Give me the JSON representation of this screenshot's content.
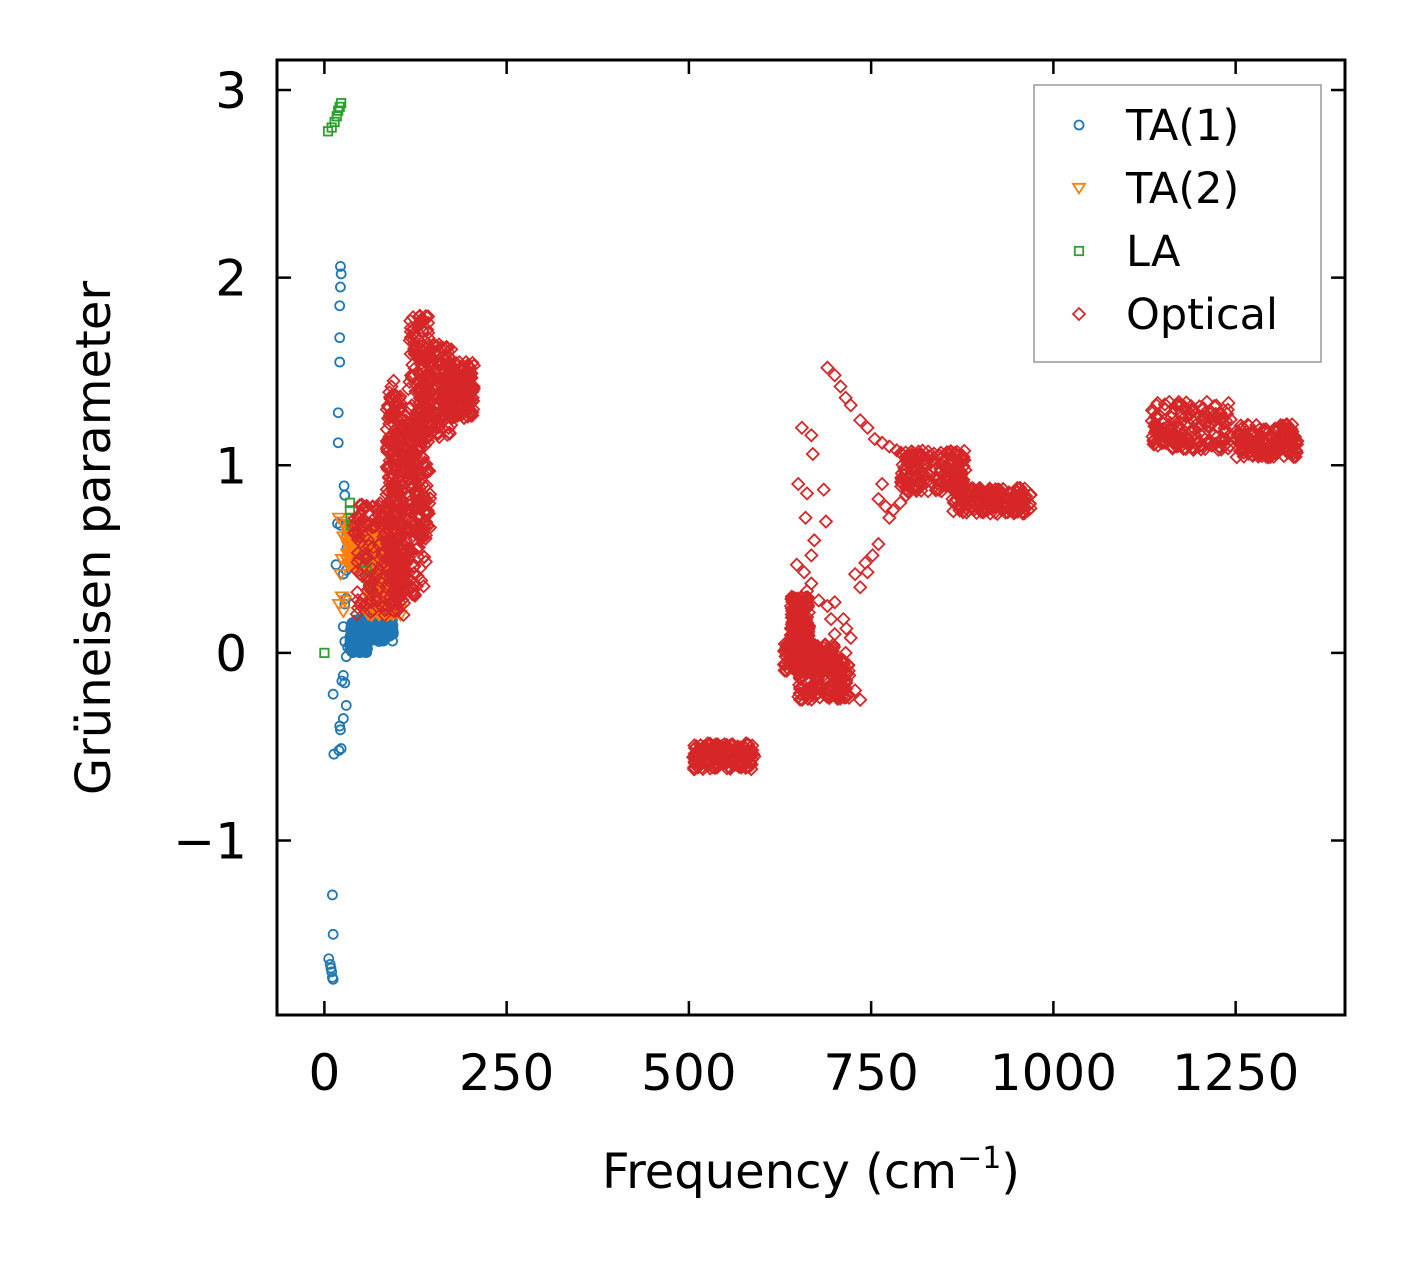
{
  "chart_data": {
    "type": "scatter",
    "title": "",
    "xlabel": "Frequency (cm",
    "xlabel_sup": "−1",
    "xlabel_suffix": ")",
    "ylabel": "Grüneisen parameter",
    "xlim": [
      -65,
      1400
    ],
    "ylim": [
      -1.93,
      3.16
    ],
    "xticks": [
      0,
      250,
      500,
      750,
      1000,
      1250
    ],
    "xtick_labels": [
      "0",
      "250",
      "500",
      "750",
      "1000",
      "1250"
    ],
    "yticks": [
      -1,
      0,
      1,
      2,
      3
    ],
    "ytick_labels": [
      "−1",
      "0",
      "1",
      "2",
      "3"
    ],
    "grid": false,
    "legend_position": "top-right",
    "series": [
      {
        "name": "TA(1)",
        "marker": "circle",
        "color": "#1f77b4",
        "points": [
          [
            22,
            2.06
          ],
          [
            23,
            2.02
          ],
          [
            22,
            1.95
          ],
          [
            21,
            1.85
          ],
          [
            21,
            1.68
          ],
          [
            21,
            1.55
          ],
          [
            19,
            1.28
          ],
          [
            19,
            1.12
          ],
          [
            27,
            0.89
          ],
          [
            28,
            0.84
          ],
          [
            18,
            0.69
          ],
          [
            22,
            0.68
          ],
          [
            30,
            0.62
          ],
          [
            31,
            0.56
          ],
          [
            16,
            0.47
          ],
          [
            30,
            0.44
          ],
          [
            26,
            0.42
          ],
          [
            30,
            0.29
          ],
          [
            28,
            0.26
          ],
          [
            26,
            0.14
          ],
          [
            28,
            0.06
          ],
          [
            32,
            0.03
          ],
          [
            30,
            -0.02
          ],
          [
            26,
            -0.12
          ],
          [
            24,
            -0.15
          ],
          [
            28,
            -0.16
          ],
          [
            12,
            -0.22
          ],
          [
            30,
            -0.28
          ],
          [
            26,
            -0.35
          ],
          [
            21,
            -0.39
          ],
          [
            22,
            -0.41
          ],
          [
            23,
            -0.51
          ],
          [
            20,
            -0.52
          ],
          [
            13,
            -0.54
          ],
          [
            11,
            -1.29
          ],
          [
            12,
            -1.5
          ],
          [
            6,
            -1.63
          ],
          [
            8,
            -1.66
          ],
          [
            9,
            -1.68
          ],
          [
            10,
            -1.7
          ],
          [
            11,
            -1.73
          ],
          [
            12,
            -1.74
          ]
        ],
        "bands": [
          {
            "x": [
              35,
              95
            ],
            "y": [
              0.06,
              0.16
            ]
          },
          {
            "x": [
              35,
              60
            ],
            "y": [
              0.0,
              0.18
            ]
          },
          {
            "x": [
              55,
              95
            ],
            "y": [
              0.1,
              0.22
            ]
          }
        ]
      },
      {
        "name": "TA(2)",
        "marker": "triangle-down",
        "color": "#ff7f0e",
        "points": [
          [
            20,
            0.72
          ],
          [
            24,
            0.7
          ],
          [
            26,
            0.62
          ],
          [
            24,
            0.5
          ],
          [
            22,
            0.42
          ],
          [
            24,
            0.3
          ],
          [
            20,
            0.26
          ],
          [
            28,
            0.28
          ],
          [
            26,
            0.22
          ]
        ],
        "bands": [
          {
            "x": [
              30,
              100
            ],
            "y": [
              0.45,
              0.7
            ]
          },
          {
            "x": [
              60,
              105
            ],
            "y": [
              0.2,
              0.52
            ]
          },
          {
            "x": [
              35,
              70
            ],
            "y": [
              0.5,
              0.68
            ]
          }
        ]
      },
      {
        "name": "LA",
        "marker": "square",
        "color": "#2ca02c",
        "points": [
          [
            5,
            2.78
          ],
          [
            10,
            2.8
          ],
          [
            14,
            2.83
          ],
          [
            17,
            2.86
          ],
          [
            19,
            2.89
          ],
          [
            21,
            2.91
          ],
          [
            23,
            2.93
          ],
          [
            0,
            0.0
          ],
          [
            35,
            0.8
          ],
          [
            35,
            0.76
          ],
          [
            36,
            0.72
          ],
          [
            37,
            0.68
          ],
          [
            54,
            0.52
          ],
          [
            56,
            0.48
          ],
          [
            58,
            0.44
          ],
          [
            57,
            0.4
          ],
          [
            60,
            0.36
          ],
          [
            100,
            0.52
          ],
          [
            104,
            0.5
          ],
          [
            108,
            0.48
          ],
          [
            112,
            0.54
          ],
          [
            96,
            0.46
          ],
          [
            102,
            0.42
          ]
        ],
        "bands": []
      },
      {
        "name": "Optical",
        "marker": "diamond",
        "color": "#d62728",
        "points": [
          [
            655,
            1.2
          ],
          [
            668,
            1.16
          ],
          [
            670,
            1.06
          ],
          [
            650,
            0.9
          ],
          [
            662,
            0.85
          ],
          [
            685,
            0.87
          ],
          [
            688,
            0.7
          ],
          [
            660,
            0.72
          ],
          [
            672,
            0.6
          ],
          [
            668,
            0.52
          ],
          [
            648,
            0.47
          ],
          [
            658,
            0.43
          ],
          [
            662,
            0.33
          ],
          [
            668,
            0.37
          ],
          [
            678,
            0.28
          ],
          [
            690,
            0.25
          ],
          [
            700,
            0.27
          ],
          [
            695,
            0.18
          ],
          [
            712,
            0.18
          ],
          [
            716,
            0.13
          ],
          [
            700,
            0.1
          ],
          [
            735,
            0.35
          ],
          [
            745,
            0.43
          ],
          [
            752,
            0.52
          ],
          [
            760,
            0.58
          ],
          [
            742,
            0.48
          ],
          [
            728,
            0.42
          ],
          [
            760,
            0.82
          ],
          [
            765,
            0.9
          ],
          [
            770,
            0.78
          ],
          [
            775,
            0.72
          ],
          [
            780,
            0.76
          ],
          [
            790,
            0.8
          ],
          [
            798,
            0.84
          ],
          [
            690,
            1.52
          ],
          [
            700,
            1.48
          ],
          [
            708,
            1.42
          ],
          [
            715,
            1.36
          ],
          [
            722,
            1.32
          ],
          [
            735,
            1.24
          ],
          [
            745,
            1.2
          ],
          [
            755,
            1.14
          ],
          [
            765,
            1.12
          ],
          [
            775,
            1.1
          ],
          [
            785,
            1.08
          ],
          [
            700,
            -0.05
          ],
          [
            710,
            -0.1
          ],
          [
            720,
            -0.12
          ],
          [
            728,
            -0.2
          ],
          [
            735,
            -0.25
          ],
          [
            715,
            0.0
          ],
          [
            722,
            0.08
          ],
          [
            95,
            1.45
          ],
          [
            92,
            1.42
          ]
        ],
        "bands": [
          {
            "x": [
              40,
              110
            ],
            "y": [
              0.2,
              0.8
            ]
          },
          {
            "x": [
              85,
              105
            ],
            "y": [
              0.3,
              1.4
            ]
          },
          {
            "x": [
              100,
              140
            ],
            "y": [
              0.3,
              1.25
            ]
          },
          {
            "x": [
              115,
              145
            ],
            "y": [
              0.6,
              1.8
            ]
          },
          {
            "x": [
              130,
              175
            ],
            "y": [
              1.15,
              1.65
            ]
          },
          {
            "x": [
              165,
              205
            ],
            "y": [
              1.25,
              1.55
            ]
          },
          {
            "x": [
              505,
              590
            ],
            "y": [
              -0.62,
              -0.48
            ]
          },
          {
            "x": [
              630,
              700
            ],
            "y": [
              -0.1,
              0.05
            ]
          },
          {
            "x": [
              650,
              720
            ],
            "y": [
              -0.25,
              -0.02
            ]
          },
          {
            "x": [
              640,
              665
            ],
            "y": [
              0.0,
              0.3
            ]
          },
          {
            "x": [
              790,
              880
            ],
            "y": [
              0.86,
              1.08
            ]
          },
          {
            "x": [
              860,
              970
            ],
            "y": [
              0.74,
              0.88
            ]
          },
          {
            "x": [
              1135,
              1245
            ],
            "y": [
              1.08,
              1.34
            ]
          },
          {
            "x": [
              1250,
              1335
            ],
            "y": [
              1.04,
              1.22
            ]
          }
        ]
      }
    ]
  }
}
